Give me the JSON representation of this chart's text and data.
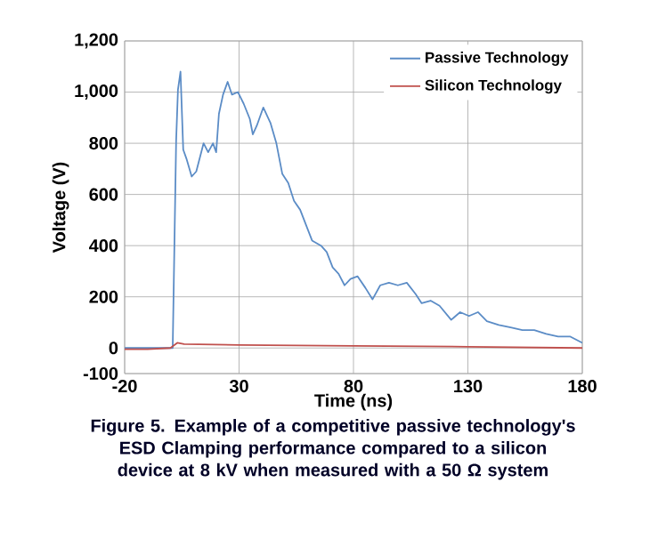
{
  "chart_data": {
    "type": "line",
    "xlabel": "Time (ns)",
    "ylabel": "Voltage (V)",
    "xlim": [
      -20,
      180
    ],
    "ylim": [
      -100,
      1200
    ],
    "xticks": [
      -20,
      30,
      80,
      130,
      180
    ],
    "yticks": [
      {
        "value": -100,
        "label": "-100"
      },
      {
        "value": 0,
        "label": "0"
      },
      {
        "value": 200,
        "label": "200"
      },
      {
        "value": 400,
        "label": "400"
      },
      {
        "value": 600,
        "label": "600"
      },
      {
        "value": 800,
        "label": "800"
      },
      {
        "value": 1000,
        "label": "1,000"
      },
      {
        "value": 1200,
        "label": "1,200"
      }
    ],
    "grid": true,
    "legend": "top right",
    "series": [
      {
        "name": "Passive Technology",
        "color": "#5b8cc6",
        "x": [
          -20,
          0,
          1,
          2.5,
          3.3,
          4.4,
          5.6,
          7,
          9.3,
          11.3,
          14.5,
          16.5,
          18.6,
          20,
          21.2,
          23,
          25,
          26.9,
          29.5,
          32,
          34.7,
          36,
          37.8,
          40.6,
          43.7,
          46.3,
          48.9,
          51.5,
          54,
          56.7,
          59.3,
          61.9,
          65.8,
          68.3,
          70.9,
          73.5,
          76.1,
          78.7,
          81.8,
          85.2,
          88.3,
          91.7,
          95.5,
          99.4,
          103.3,
          107.2,
          109.8,
          113.7,
          117.6,
          122.7,
          126.6,
          130.5,
          134.4,
          138.3,
          143.5,
          148.7,
          153.8,
          159,
          164.2,
          169.4,
          174.6,
          180
        ],
        "values": [
          0,
          0,
          0,
          810,
          1010,
          1080,
          775,
          740,
          670,
          690,
          800,
          765,
          800,
          765,
          915,
          990,
          1040,
          990,
          1000,
          955,
          895,
          835,
          870,
          940,
          880,
          800,
          680,
          645,
          575,
          540,
          480,
          420,
          400,
          375,
          315,
          290,
          245,
          270,
          280,
          235,
          190,
          245,
          255,
          245,
          255,
          210,
          175,
          185,
          165,
          110,
          140,
          125,
          140,
          105,
          90,
          80,
          70,
          70,
          55,
          45,
          45,
          20
        ]
      },
      {
        "name": "Silicon Technology",
        "color": "#c0504d",
        "x": [
          -20,
          -10,
          0,
          3,
          6,
          30,
          80,
          130,
          180
        ],
        "values": [
          -5,
          -5,
          0,
          20,
          15,
          12,
          8,
          5,
          0
        ]
      }
    ],
    "annotations": [
      "Figure 5. Example of a competitive passive technology's ESD Clamping performance compared to a silicon device at 8 kV when measured with a 50 Ω system"
    ]
  }
}
